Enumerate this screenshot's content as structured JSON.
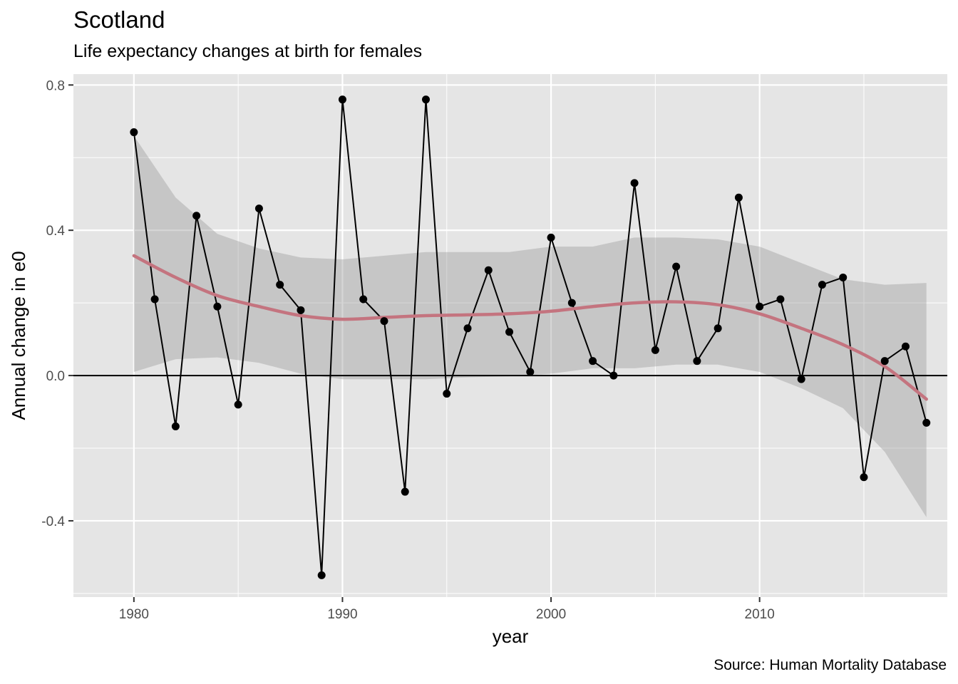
{
  "chart_data": {
    "type": "line",
    "title": "Scotland",
    "subtitle": "Life expectancy changes at birth for females",
    "caption": "Source: Human Mortality Database",
    "xlabel": "year",
    "ylabel": "Annual change in e0",
    "xlim": [
      1977.1,
      2019.0
    ],
    "ylim": [
      -0.61,
      0.83
    ],
    "x_ticks": [
      1980,
      1990,
      2000,
      2010
    ],
    "x_tick_labels": [
      "1980",
      "1990",
      "2000",
      "2010"
    ],
    "y_ticks": [
      -0.4,
      0.0,
      0.4,
      0.8
    ],
    "y_tick_labels": [
      "-0.4",
      "0.0",
      "0.4",
      "0.8"
    ],
    "grid": true,
    "reference_line": 0.0,
    "series": [
      {
        "kind": "line+points",
        "color": "#000000",
        "x": [
          1980,
          1981,
          1982,
          1983,
          1984,
          1985,
          1986,
          1987,
          1988,
          1989,
          1990,
          1991,
          1992,
          1993,
          1994,
          1995,
          1996,
          1997,
          1998,
          1999,
          2000,
          2001,
          2002,
          2003,
          2004,
          2005,
          2006,
          2007,
          2008,
          2009,
          2010,
          2011,
          2012,
          2013,
          2014,
          2015,
          2016,
          2017,
          2018
        ],
        "values": [
          0.67,
          0.21,
          -0.14,
          0.44,
          0.19,
          -0.08,
          0.46,
          0.25,
          0.18,
          -0.55,
          0.76,
          0.21,
          0.15,
          -0.32,
          0.76,
          -0.05,
          0.13,
          0.29,
          0.12,
          0.01,
          0.38,
          0.2,
          0.04,
          0.0,
          0.53,
          0.07,
          0.3,
          0.04,
          0.13,
          0.49,
          0.19,
          0.21,
          -0.01,
          0.25,
          0.27,
          -0.28,
          0.04,
          0.08,
          -0.13
        ]
      },
      {
        "kind": "smooth",
        "color": "#c4747f",
        "band_color": "#bdbdbd",
        "x": [
          1980,
          1982,
          1984,
          1986,
          1988,
          1990,
          1992,
          1994,
          1996,
          1998,
          2000,
          2002,
          2004,
          2006,
          2008,
          2010,
          2012,
          2014,
          2016,
          2018
        ],
        "values": [
          0.33,
          0.27,
          0.22,
          0.19,
          0.165,
          0.155,
          0.16,
          0.165,
          0.167,
          0.17,
          0.177,
          0.19,
          0.2,
          0.203,
          0.195,
          0.17,
          0.13,
          0.085,
          0.025,
          -0.065
        ],
        "lower": [
          0.01,
          0.045,
          0.05,
          0.035,
          0.005,
          -0.01,
          -0.01,
          -0.01,
          -0.005,
          -0.002,
          0.005,
          0.02,
          0.02,
          0.03,
          0.03,
          0.01,
          -0.035,
          -0.09,
          -0.21,
          -0.39
        ],
        "upper": [
          0.66,
          0.49,
          0.39,
          0.35,
          0.325,
          0.32,
          0.33,
          0.34,
          0.34,
          0.34,
          0.355,
          0.355,
          0.38,
          0.38,
          0.375,
          0.355,
          0.31,
          0.265,
          0.25,
          0.255
        ]
      }
    ]
  }
}
